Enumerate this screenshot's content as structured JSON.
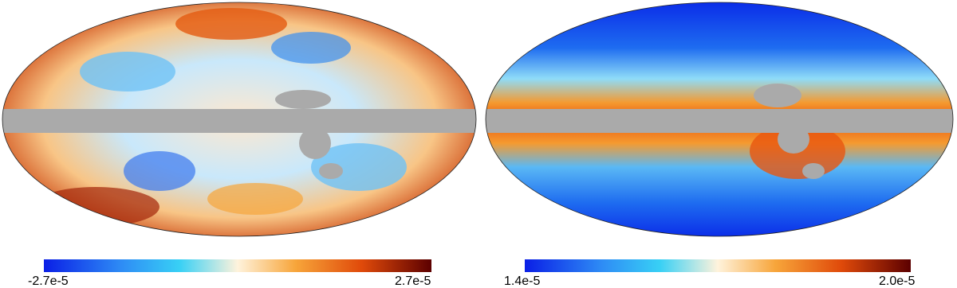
{
  "maps": [
    {
      "colorbar": {
        "min": "-2.7e-5",
        "max": "2.7e-5"
      }
    },
    {
      "colorbar": {
        "min": "1.4e-5",
        "max": "2.0e-5"
      }
    }
  ]
}
